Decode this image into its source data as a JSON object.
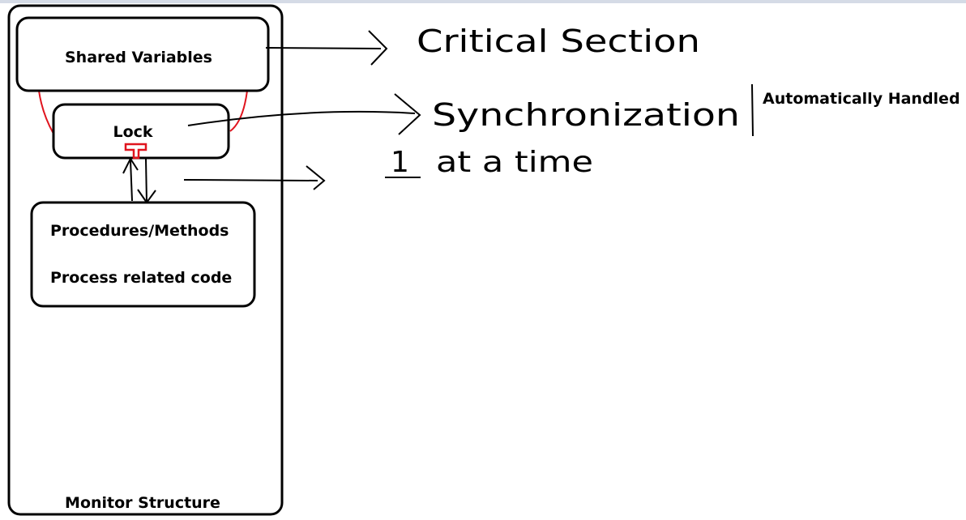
{
  "monitor": {
    "shared_variables_label": "Shared Variables",
    "lock_label": "Lock",
    "procedures_label": "Procedures/Methods",
    "process_code_label": "Process related code",
    "structure_label": "Monitor Structure"
  },
  "annotations": {
    "critical_section": "Critical Section",
    "synchronization": "Synchronization",
    "automatically_handled": "Automatically Handled",
    "one": "1",
    "at_a_time": "at a time"
  },
  "colors": {
    "ink": "#000000",
    "accent": "#e0141e",
    "topbar": "#d5dbe6"
  }
}
